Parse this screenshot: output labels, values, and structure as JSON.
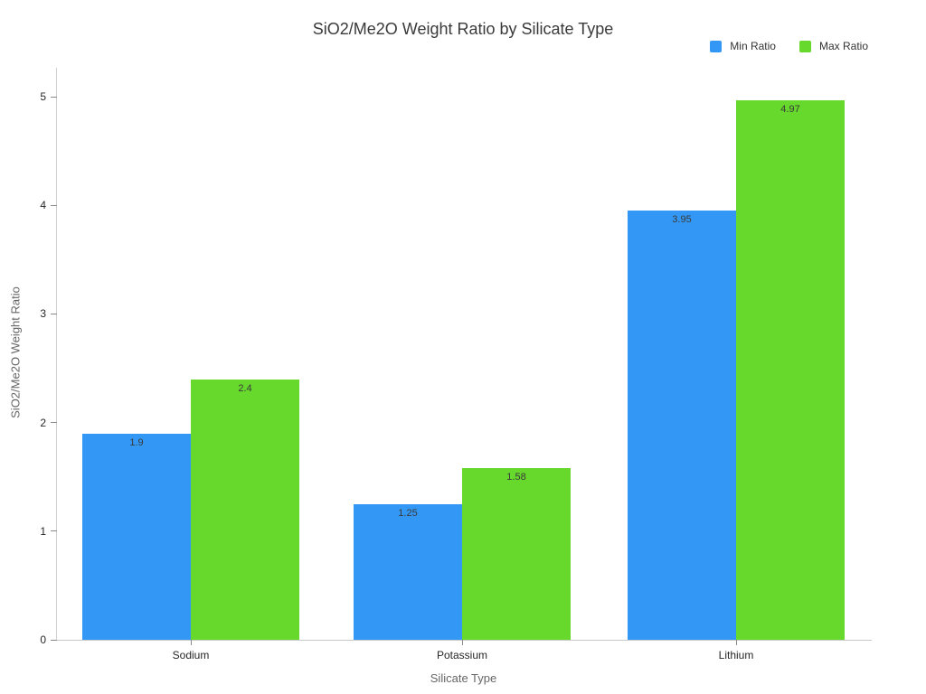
{
  "chart_data": {
    "type": "bar",
    "title": "SiO2/Me2O Weight Ratio by Silicate Type",
    "categories": [
      "Sodium",
      "Potassium",
      "Lithium"
    ],
    "series": [
      {
        "name": "Min Ratio",
        "color": "#3398f5",
        "values": [
          1.9,
          1.25,
          3.95
        ],
        "labels": [
          "1.9",
          "1.25",
          "3.95"
        ]
      },
      {
        "name": "Max Ratio",
        "color": "#66d92c",
        "values": [
          2.4,
          1.58,
          4.97
        ],
        "labels": [
          "2.4",
          "1.58",
          "4.97"
        ]
      }
    ],
    "xlabel": "Silicate Type",
    "ylabel": "SiO2/Me2O Weight Ratio",
    "ylim": [
      0,
      5
    ],
    "yticks": [
      0,
      1,
      2,
      3,
      4,
      5
    ],
    "grid": false,
    "legend_position": "top-right"
  }
}
